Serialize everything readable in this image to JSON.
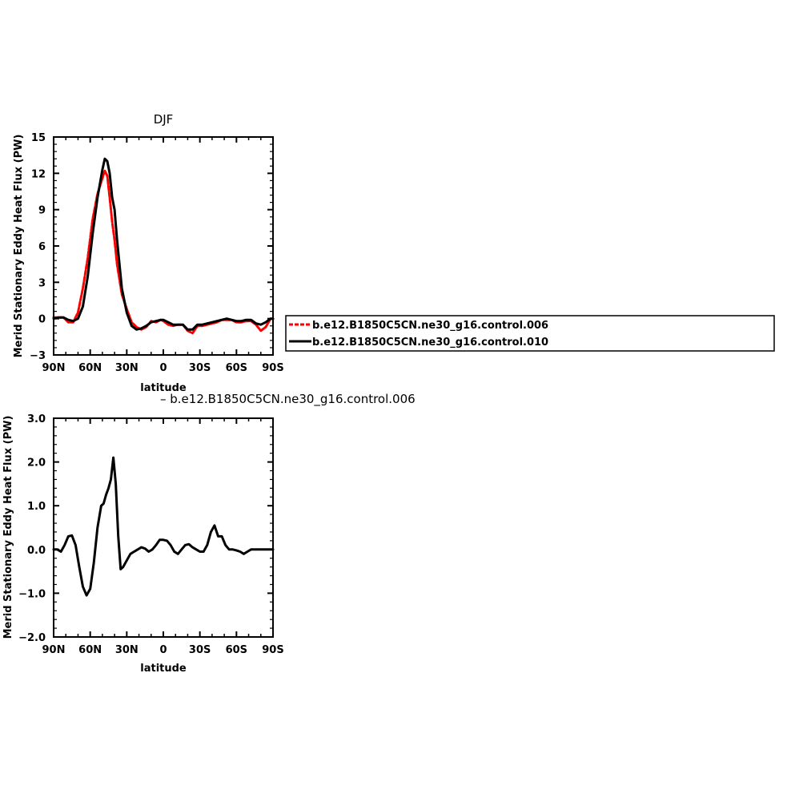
{
  "chart_data": [
    {
      "type": "line",
      "title": "DJF",
      "xlabel": "latitude",
      "ylabel": "Merid Stationary Eddy Heat Flux (PW)",
      "xlim": [
        90,
        -90
      ],
      "ylim": [
        -3,
        15
      ],
      "x_ticks": [
        {
          "value": 90,
          "label": "90N"
        },
        {
          "value": 60,
          "label": "60N"
        },
        {
          "value": 30,
          "label": "30N"
        },
        {
          "value": 0,
          "label": "0"
        },
        {
          "value": -30,
          "label": "30S"
        },
        {
          "value": -60,
          "label": "60S"
        },
        {
          "value": -90,
          "label": "90S"
        }
      ],
      "y_ticks": [
        {
          "value": -3,
          "label": "−3"
        },
        {
          "value": 0,
          "label": "0"
        },
        {
          "value": 3,
          "label": "3"
        },
        {
          "value": 6,
          "label": "6"
        },
        {
          "value": 9,
          "label": "9"
        },
        {
          "value": 12,
          "label": "12"
        },
        {
          "value": 15,
          "label": "15"
        }
      ],
      "legend": {
        "placement": "right",
        "entries": [
          "b.e12.B1850C5CN.ne30_g16.control.006",
          "b.e12.B1850C5CN.ne30_g16.control.010"
        ]
      },
      "series": [
        {
          "name": "b.e12.B1850C5CN.ne30_g16.control.006",
          "color": "#ff0000",
          "dash": "dash",
          "x": [
            90,
            86,
            82,
            78,
            74,
            70,
            66,
            62,
            58,
            54,
            50,
            48,
            46,
            44,
            42,
            40,
            38,
            34,
            30,
            26,
            22,
            18,
            14,
            10,
            6,
            2,
            0,
            -4,
            -8,
            -12,
            -16,
            -20,
            -24,
            -28,
            -32,
            -36,
            -40,
            -44,
            -48,
            -52,
            -56,
            -60,
            -64,
            -68,
            -72,
            -76,
            -80,
            -84,
            -88,
            -90
          ],
          "y": [
            0.1,
            0.1,
            0.1,
            -0.3,
            -0.3,
            0.5,
            2.5,
            5.0,
            8.2,
            10.3,
            11.6,
            12.2,
            11.8,
            10.0,
            8.0,
            6.5,
            4.5,
            2.0,
            0.8,
            -0.3,
            -0.7,
            -0.9,
            -0.7,
            -0.2,
            -0.3,
            -0.1,
            -0.2,
            -0.5,
            -0.6,
            -0.5,
            -0.5,
            -1.0,
            -1.2,
            -0.6,
            -0.6,
            -0.5,
            -0.4,
            -0.3,
            -0.1,
            -0.1,
            -0.1,
            -0.3,
            -0.3,
            -0.2,
            -0.2,
            -0.5,
            -1.0,
            -0.7,
            0.0,
            0.0
          ]
        },
        {
          "name": "b.e12.B1850C5CN.ne30_g16.control.010",
          "color": "#000000",
          "dash": "solid",
          "x": [
            90,
            86,
            82,
            78,
            74,
            70,
            66,
            62,
            58,
            54,
            50,
            48,
            46,
            44,
            42,
            40,
            38,
            34,
            30,
            26,
            22,
            18,
            14,
            10,
            6,
            2,
            0,
            -4,
            -8,
            -12,
            -16,
            -20,
            -24,
            -28,
            -32,
            -36,
            -40,
            -44,
            -48,
            -52,
            -56,
            -60,
            -64,
            -68,
            -72,
            -76,
            -80,
            -84,
            -88,
            -90
          ],
          "y": [
            0.0,
            0.1,
            0.1,
            -0.1,
            -0.2,
            0.0,
            1.0,
            3.5,
            7.0,
            10.0,
            12.3,
            13.2,
            13.0,
            12.0,
            10.0,
            9.0,
            6.5,
            2.5,
            0.5,
            -0.6,
            -0.9,
            -0.8,
            -0.6,
            -0.3,
            -0.2,
            -0.1,
            -0.1,
            -0.3,
            -0.5,
            -0.5,
            -0.5,
            -0.9,
            -0.9,
            -0.5,
            -0.5,
            -0.4,
            -0.3,
            -0.2,
            -0.1,
            0.0,
            -0.1,
            -0.2,
            -0.2,
            -0.1,
            -0.1,
            -0.4,
            -0.5,
            -0.3,
            0.0,
            0.0
          ]
        }
      ]
    },
    {
      "type": "line",
      "title": "– b.e12.B1850C5CN.ne30_g16.control.006",
      "xlabel": "latitude",
      "ylabel": "Merid Stationary Eddy Heat Flux (PW)",
      "xlim": [
        90,
        -90
      ],
      "ylim": [
        -2,
        3
      ],
      "x_ticks": [
        {
          "value": 90,
          "label": "90N"
        },
        {
          "value": 60,
          "label": "60N"
        },
        {
          "value": 30,
          "label": "30N"
        },
        {
          "value": 0,
          "label": "0"
        },
        {
          "value": -30,
          "label": "30S"
        },
        {
          "value": -60,
          "label": "60S"
        },
        {
          "value": -90,
          "label": "90S"
        }
      ],
      "y_ticks": [
        {
          "value": -2,
          "label": "−2.0"
        },
        {
          "value": -1,
          "label": "−1.0"
        },
        {
          "value": 0,
          "label": "0.0"
        },
        {
          "value": 1,
          "label": "1.0"
        },
        {
          "value": 2,
          "label": "2.0"
        },
        {
          "value": 3,
          "label": "3.0"
        }
      ],
      "series": [
        {
          "color": "#000000",
          "dash": "solid",
          "x": [
            90,
            87,
            84,
            81,
            78,
            75,
            72,
            69,
            66,
            63,
            60,
            57,
            54,
            51,
            49,
            47,
            45,
            43,
            41,
            39,
            37,
            35,
            33,
            31,
            29,
            27,
            24,
            21,
            18,
            15,
            12,
            9,
            6,
            3,
            0,
            -3,
            -6,
            -9,
            -12,
            -15,
            -18,
            -21,
            -24,
            -27,
            -30,
            -33,
            -36,
            -39,
            -42,
            -45,
            -48,
            -51,
            -54,
            -57,
            -60,
            -63,
            -66,
            -69,
            -72,
            -75,
            -78,
            -80,
            -82,
            -84,
            -86,
            -88,
            -90
          ],
          "y": [
            0.0,
            0.0,
            -0.05,
            0.1,
            0.3,
            0.32,
            0.1,
            -0.4,
            -0.85,
            -1.05,
            -0.9,
            -0.3,
            0.5,
            1.0,
            1.05,
            1.25,
            1.4,
            1.6,
            2.1,
            1.5,
            0.3,
            -0.45,
            -0.4,
            -0.3,
            -0.2,
            -0.1,
            -0.05,
            0.0,
            0.05,
            0.02,
            -0.05,
            0.0,
            0.1,
            0.22,
            0.22,
            0.2,
            0.1,
            -0.05,
            -0.1,
            0.0,
            0.1,
            0.12,
            0.05,
            0.0,
            -0.05,
            -0.05,
            0.1,
            0.4,
            0.55,
            0.3,
            0.3,
            0.1,
            0.0,
            0.0,
            -0.02,
            -0.05,
            -0.1,
            -0.05,
            0.0,
            0.0,
            0.0,
            0.0,
            0.0,
            0.0,
            0.0,
            0.0,
            0.0
          ]
        }
      ]
    }
  ]
}
